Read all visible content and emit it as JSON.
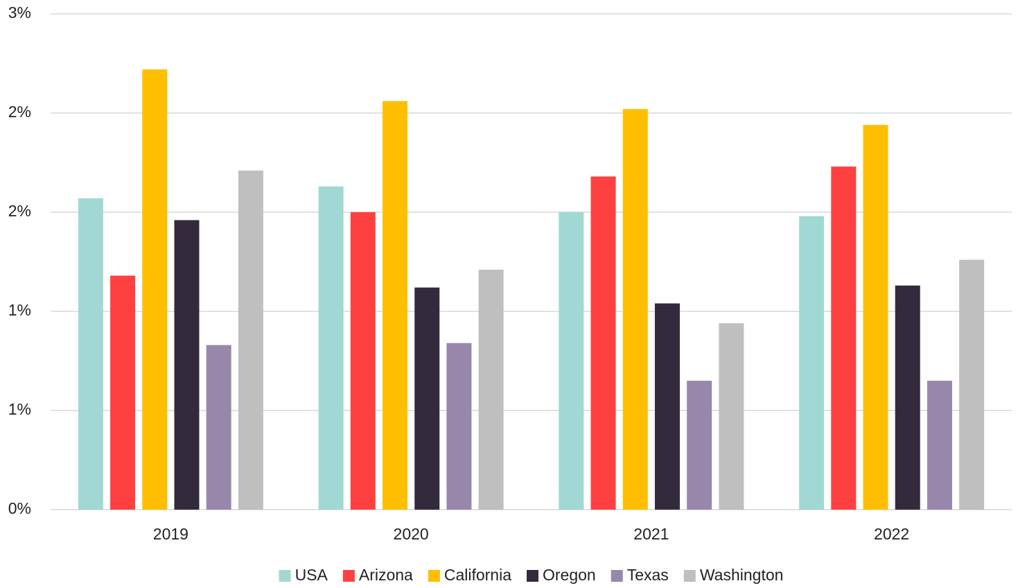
{
  "chart_data": {
    "type": "bar",
    "categories": [
      "2019",
      "2020",
      "2021",
      "2022"
    ],
    "series": [
      {
        "name": "USA",
        "color": "#a2d8d3",
        "values": [
          1.57,
          1.63,
          1.5,
          1.48
        ]
      },
      {
        "name": "Arizona",
        "color": "#ff4040",
        "values": [
          1.18,
          1.5,
          1.68,
          1.73
        ]
      },
      {
        "name": "California",
        "color": "#ffbf00",
        "values": [
          2.22,
          2.06,
          2.02,
          1.94
        ]
      },
      {
        "name": "Oregon",
        "color": "#332a3c",
        "values": [
          1.46,
          1.12,
          1.04,
          1.13
        ]
      },
      {
        "name": "Texas",
        "color": "#9987ab",
        "values": [
          0.83,
          0.84,
          0.65,
          0.65
        ]
      },
      {
        "name": "Washington",
        "color": "#bfbfbf",
        "values": [
          1.71,
          1.21,
          0.94,
          1.26
        ]
      }
    ],
    "ylim": [
      0,
      2.5
    ],
    "yticks": [
      {
        "value": 0,
        "label": "0%"
      },
      {
        "value": 0.5,
        "label": "1%"
      },
      {
        "value": 1,
        "label": "1%"
      },
      {
        "value": 1.5,
        "label": "2%"
      },
      {
        "value": 2,
        "label": "2%"
      },
      {
        "value": 2.5,
        "label": "3%"
      }
    ],
    "grid": true,
    "legend": "bottom"
  }
}
